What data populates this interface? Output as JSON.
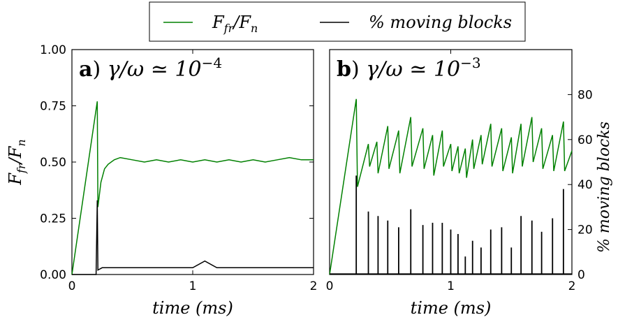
{
  "legend": {
    "entries": [
      {
        "label": "F_fr/F_n",
        "color": "#008000"
      },
      {
        "label": "% moving blocks",
        "color": "#000000"
      }
    ]
  },
  "chart_data": [
    {
      "type": "line",
      "panel_label": "a)",
      "panel_title": "γ/ω ≃ 10",
      "panel_title_exp": "−4",
      "xlabel": "time (ms)",
      "ylabel": "F_fr/F_n",
      "xlim": [
        0,
        2
      ],
      "ylim": [
        0,
        1.0
      ],
      "x_ticks": [
        "0",
        "1",
        "2"
      ],
      "y_ticks": [
        "0.00",
        "0.25",
        "0.50",
        "0.75",
        "1.00"
      ],
      "series": [
        {
          "name": "F_fr/F_n",
          "color": "#008000",
          "points": [
            [
              0,
              0
            ],
            [
              0.21,
              0.77
            ],
            [
              0.215,
              0.3
            ],
            [
              0.24,
              0.41
            ],
            [
              0.27,
              0.47
            ],
            [
              0.3,
              0.49
            ],
            [
              0.35,
              0.51
            ],
            [
              0.4,
              0.52
            ],
            [
              0.5,
              0.51
            ],
            [
              0.6,
              0.5
            ],
            [
              0.7,
              0.51
            ],
            [
              0.8,
              0.5
            ],
            [
              0.9,
              0.51
            ],
            [
              1.0,
              0.5
            ],
            [
              1.1,
              0.51
            ],
            [
              1.2,
              0.5
            ],
            [
              1.3,
              0.51
            ],
            [
              1.4,
              0.5
            ],
            [
              1.5,
              0.51
            ],
            [
              1.6,
              0.5
            ],
            [
              1.7,
              0.51
            ],
            [
              1.8,
              0.52
            ],
            [
              1.9,
              0.51
            ],
            [
              2.0,
              0.51
            ]
          ]
        },
        {
          "name": "% moving blocks",
          "color": "#000000",
          "points": [
            [
              0,
              0
            ],
            [
              0.2,
              0
            ],
            [
              0.21,
              0.33
            ],
            [
              0.215,
              0.02
            ],
            [
              0.25,
              0.03
            ],
            [
              0.5,
              0.03
            ],
            [
              0.8,
              0.03
            ],
            [
              1.0,
              0.03
            ],
            [
              1.1,
              0.06
            ],
            [
              1.2,
              0.03
            ],
            [
              1.5,
              0.03
            ],
            [
              1.8,
              0.03
            ],
            [
              2.0,
              0.03
            ]
          ]
        }
      ]
    },
    {
      "type": "line",
      "panel_label": "b)",
      "panel_title": "γ/ω ≃ 10",
      "panel_title_exp": "−3",
      "xlabel": "time (ms)",
      "y2label": "% moving blocks",
      "xlim": [
        0,
        2
      ],
      "ylim": [
        0,
        1.0
      ],
      "y2lim": [
        0,
        100
      ],
      "x_ticks": [
        "0",
        "1",
        "2"
      ],
      "y2_ticks": [
        "0",
        "20",
        "40",
        "60",
        "80"
      ],
      "series": [
        {
          "name": "F_fr/F_n",
          "color": "#008000",
          "points": [
            [
              0,
              0
            ],
            [
              0.22,
              0.78
            ],
            [
              0.23,
              0.39
            ],
            [
              0.32,
              0.58
            ],
            [
              0.33,
              0.48
            ],
            [
              0.39,
              0.59
            ],
            [
              0.4,
              0.45
            ],
            [
              0.48,
              0.66
            ],
            [
              0.49,
              0.47
            ],
            [
              0.57,
              0.64
            ],
            [
              0.58,
              0.45
            ],
            [
              0.67,
              0.7
            ],
            [
              0.68,
              0.48
            ],
            [
              0.77,
              0.65
            ],
            [
              0.78,
              0.47
            ],
            [
              0.85,
              0.62
            ],
            [
              0.86,
              0.44
            ],
            [
              0.93,
              0.64
            ],
            [
              0.94,
              0.48
            ],
            [
              1.0,
              0.58
            ],
            [
              1.01,
              0.46
            ],
            [
              1.06,
              0.57
            ],
            [
              1.07,
              0.45
            ],
            [
              1.12,
              0.56
            ],
            [
              1.13,
              0.43
            ],
            [
              1.18,
              0.6
            ],
            [
              1.19,
              0.47
            ],
            [
              1.25,
              0.62
            ],
            [
              1.26,
              0.49
            ],
            [
              1.33,
              0.67
            ],
            [
              1.34,
              0.48
            ],
            [
              1.42,
              0.65
            ],
            [
              1.43,
              0.46
            ],
            [
              1.5,
              0.61
            ],
            [
              1.51,
              0.45
            ],
            [
              1.58,
              0.67
            ],
            [
              1.59,
              0.48
            ],
            [
              1.67,
              0.7
            ],
            [
              1.68,
              0.5
            ],
            [
              1.75,
              0.65
            ],
            [
              1.76,
              0.47
            ],
            [
              1.84,
              0.62
            ],
            [
              1.85,
              0.46
            ],
            [
              1.93,
              0.68
            ],
            [
              1.94,
              0.46
            ],
            [
              2.0,
              0.55
            ]
          ]
        },
        {
          "name": "% moving blocks",
          "color": "#000000",
          "spikes": [
            [
              0.22,
              44
            ],
            [
              0.32,
              28
            ],
            [
              0.4,
              26
            ],
            [
              0.48,
              24
            ],
            [
              0.57,
              21
            ],
            [
              0.67,
              29
            ],
            [
              0.77,
              22
            ],
            [
              0.85,
              23
            ],
            [
              0.93,
              23
            ],
            [
              1.0,
              20
            ],
            [
              1.06,
              18
            ],
            [
              1.12,
              8
            ],
            [
              1.18,
              15
            ],
            [
              1.25,
              12
            ],
            [
              1.33,
              20
            ],
            [
              1.42,
              21
            ],
            [
              1.5,
              12
            ],
            [
              1.58,
              26
            ],
            [
              1.67,
              24
            ],
            [
              1.75,
              19
            ],
            [
              1.84,
              25
            ],
            [
              1.93,
              38
            ]
          ]
        }
      ]
    }
  ]
}
